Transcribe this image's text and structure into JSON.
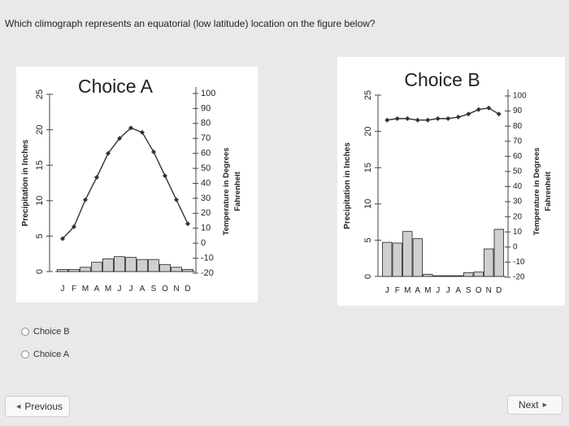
{
  "question": "Which climograph represents an equatorial (low latitude) location on the figure below?",
  "options": [
    {
      "label": "Choice B"
    },
    {
      "label": "Choice A"
    }
  ],
  "nav": {
    "previous_label": "Previous",
    "next_label": "Next"
  },
  "icons": {
    "previous": "triangle-left-icon",
    "next": "triangle-right-icon"
  },
  "colors": {
    "page_bg": "#e9e9e9",
    "panel_bg": "#ffffff",
    "line": "#333333",
    "bars": "#cfcfcf",
    "bar_stroke": "#222222"
  },
  "chart_data": [
    {
      "type": "climograph",
      "title": "Choice A",
      "categories": [
        "J",
        "F",
        "M",
        "A",
        "M",
        "J",
        "J",
        "A",
        "S",
        "O",
        "N",
        "D"
      ],
      "y_left": {
        "label": "Precipitation in Inches",
        "ticks": [
          0,
          5,
          10,
          15,
          20,
          25
        ],
        "range": [
          0,
          25
        ]
      },
      "y_right": {
        "label": "Temperature in Degrees",
        "sublabel": "Fahrenheit",
        "ticks": [
          100,
          90,
          80,
          70,
          60,
          50,
          40,
          30,
          20,
          10,
          0,
          -10,
          -20
        ],
        "range": [
          -20,
          100
        ]
      },
      "series": [
        {
          "kind": "bar",
          "axis": "left",
          "values": [
            0.3,
            0.3,
            0.6,
            1.3,
            1.8,
            2.1,
            2.0,
            1.7,
            1.7,
            1.0,
            0.6,
            0.3
          ]
        },
        {
          "kind": "line",
          "axis": "right",
          "values": [
            3,
            11,
            29,
            44,
            60,
            70,
            77,
            74,
            61,
            45,
            29,
            13
          ]
        }
      ]
    },
    {
      "type": "climograph",
      "title": "Choice B",
      "categories": [
        "J",
        "F",
        "M",
        "A",
        "M",
        "J",
        "J",
        "A",
        "S",
        "O",
        "N",
        "D"
      ],
      "y_left": {
        "label": "Precipitation in Inches",
        "ticks": [
          0,
          5,
          10,
          15,
          20,
          25
        ],
        "range": [
          0,
          25
        ]
      },
      "y_right": {
        "label": "Temperature in Degrees",
        "sublabel": "Fahrenheit",
        "ticks": [
          100,
          90,
          80,
          70,
          60,
          50,
          40,
          30,
          20,
          10,
          0,
          -10,
          -20
        ],
        "range": [
          -20,
          100
        ]
      },
      "series": [
        {
          "kind": "bar",
          "axis": "left",
          "values": [
            4.7,
            4.6,
            6.2,
            5.2,
            0.3,
            0.1,
            0.1,
            0.1,
            0.5,
            0.6,
            3.8,
            6.5
          ]
        },
        {
          "kind": "line",
          "axis": "right",
          "values": [
            84,
            85,
            85,
            84,
            84,
            85,
            85,
            86,
            88,
            91,
            92,
            88
          ]
        }
      ]
    }
  ]
}
